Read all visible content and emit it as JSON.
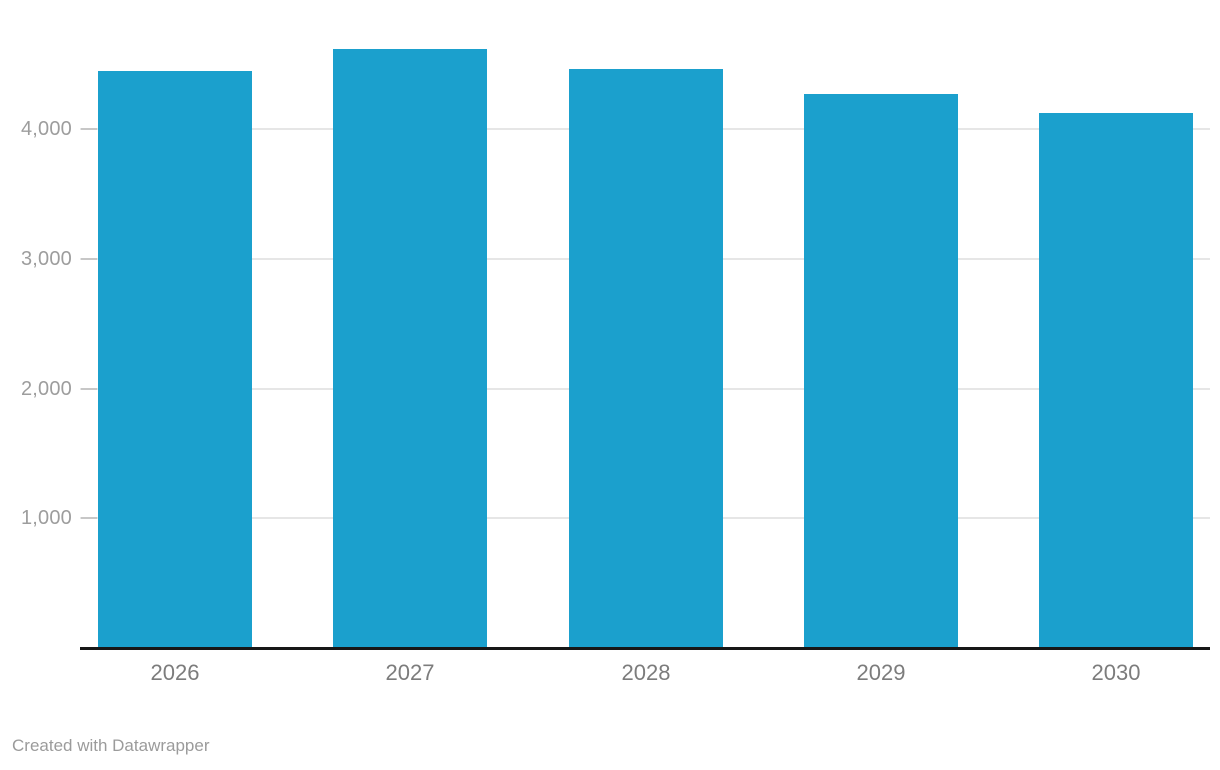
{
  "chart_data": {
    "type": "bar",
    "categories": [
      "2026",
      "2027",
      "2028",
      "2029",
      "2030"
    ],
    "values": [
      4450,
      4620,
      4460,
      4270,
      4120
    ],
    "title": "",
    "xlabel": "",
    "ylabel": "",
    "ylim": [
      0,
      5000
    ],
    "yticks": [
      1000,
      2000,
      3000,
      4000
    ],
    "ytick_labels": [
      "1,000",
      "2,000",
      "3,000",
      "4,000"
    ],
    "grid": true,
    "legend": "none",
    "bar_color": "#1BA0CD"
  },
  "colors": {
    "background": "#ffffff",
    "gridline": "#e6e6e6",
    "tick_dash": "#c7c7c7",
    "baseline": "#171717",
    "ytick_label": "#9d9d9d",
    "xtick_label": "#7c7c7c",
    "footer_text": "#9b9b9b"
  },
  "footer": {
    "attribution": "Created with Datawrapper"
  }
}
